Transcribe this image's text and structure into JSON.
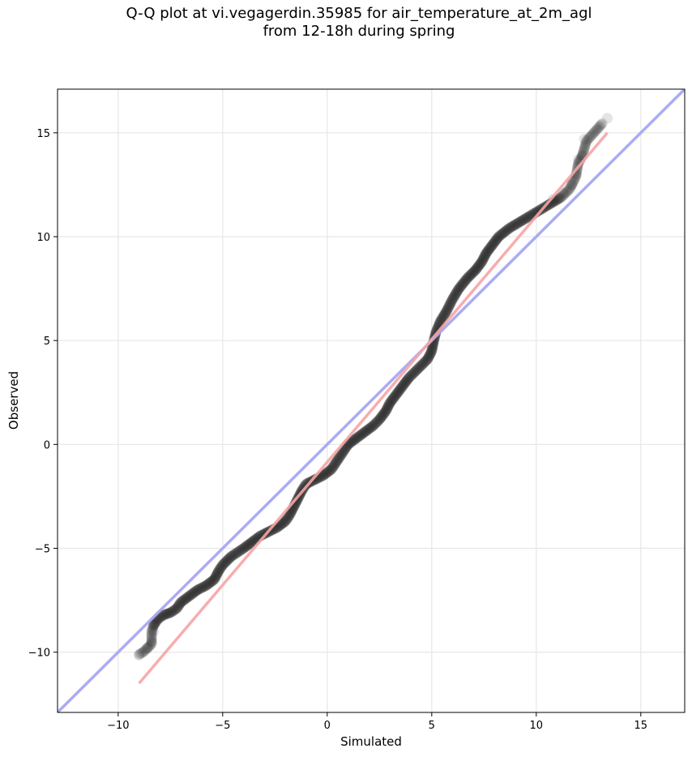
{
  "chart_data": {
    "type": "scatter",
    "title_line1": "Q-Q plot at vi.vegagerdin.35985 for air_temperature_at_2m_agl",
    "title_line2": "from 12-18h during spring",
    "xlabel": "Simulated",
    "ylabel": "Observed",
    "xlim": [
      -12.9,
      17.1
    ],
    "ylim": [
      -12.9,
      17.1
    ],
    "xticks": [
      -10,
      -5,
      0,
      5,
      10,
      15
    ],
    "yticks": [
      -10,
      -5,
      0,
      5,
      10,
      15
    ],
    "xtick_labels": [
      "−10",
      "−5",
      "0",
      "5",
      "10",
      "15"
    ],
    "ytick_labels": [
      "−10",
      "−5",
      "0",
      "5",
      "10",
      "15"
    ],
    "grid": true,
    "quantile_curve": [
      [
        -9.0,
        -10.1
      ],
      [
        -8.8,
        -10.0
      ],
      [
        -8.6,
        -9.8
      ],
      [
        -8.4,
        -9.6
      ],
      [
        -8.4,
        -9.0
      ],
      [
        -8.3,
        -8.7
      ],
      [
        -8.1,
        -8.4
      ],
      [
        -7.8,
        -8.2
      ],
      [
        -7.5,
        -8.1
      ],
      [
        -7.2,
        -7.9
      ],
      [
        -7.0,
        -7.6
      ],
      [
        -6.6,
        -7.3
      ],
      [
        -6.2,
        -7.0
      ],
      [
        -5.8,
        -6.8
      ],
      [
        -5.4,
        -6.5
      ],
      [
        -5.2,
        -6.1
      ],
      [
        -5.0,
        -5.8
      ],
      [
        -4.8,
        -5.6
      ],
      [
        -4.6,
        -5.4
      ],
      [
        -4.3,
        -5.2
      ],
      [
        -4.0,
        -5.0
      ],
      [
        -3.6,
        -4.7
      ],
      [
        -3.2,
        -4.4
      ],
      [
        -2.8,
        -4.2
      ],
      [
        -2.4,
        -4.0
      ],
      [
        -2.0,
        -3.7
      ],
      [
        -1.8,
        -3.4
      ],
      [
        -1.6,
        -3.0
      ],
      [
        -1.4,
        -2.6
      ],
      [
        -1.2,
        -2.2
      ],
      [
        -1.0,
        -1.9
      ],
      [
        -0.6,
        -1.7
      ],
      [
        -0.2,
        -1.5
      ],
      [
        0.2,
        -1.2
      ],
      [
        0.4,
        -0.9
      ],
      [
        0.6,
        -0.6
      ],
      [
        0.8,
        -0.3
      ],
      [
        1.0,
        0.0
      ],
      [
        1.4,
        0.3
      ],
      [
        1.8,
        0.6
      ],
      [
        2.2,
        0.9
      ],
      [
        2.5,
        1.2
      ],
      [
        2.8,
        1.6
      ],
      [
        3.0,
        2.0
      ],
      [
        3.3,
        2.4
      ],
      [
        3.6,
        2.8
      ],
      [
        3.9,
        3.2
      ],
      [
        4.2,
        3.5
      ],
      [
        4.5,
        3.8
      ],
      [
        4.8,
        4.1
      ],
      [
        5.0,
        4.5
      ],
      [
        5.1,
        5.0
      ],
      [
        5.2,
        5.4
      ],
      [
        5.4,
        5.9
      ],
      [
        5.7,
        6.4
      ],
      [
        6.0,
        7.0
      ],
      [
        6.3,
        7.5
      ],
      [
        6.7,
        8.0
      ],
      [
        7.1,
        8.4
      ],
      [
        7.4,
        8.8
      ],
      [
        7.6,
        9.2
      ],
      [
        7.9,
        9.6
      ],
      [
        8.2,
        10.0
      ],
      [
        8.7,
        10.4
      ],
      [
        9.2,
        10.7
      ],
      [
        9.7,
        11.0
      ],
      [
        10.2,
        11.3
      ],
      [
        10.7,
        11.6
      ],
      [
        11.2,
        11.9
      ],
      [
        11.6,
        12.3
      ],
      [
        11.9,
        12.9
      ],
      [
        12.0,
        13.5
      ],
      [
        12.2,
        13.9
      ],
      [
        12.4,
        14.6
      ],
      [
        13.2,
        15.5
      ]
    ],
    "sparse_points": [
      [
        -9.0,
        -10.15
      ],
      [
        -8.6,
        -9.8
      ],
      [
        -8.4,
        -9.5
      ],
      [
        -8.3,
        -9.0
      ],
      [
        -8.3,
        -8.7
      ],
      [
        10.8,
        11.8
      ],
      [
        11.3,
        12.1
      ],
      [
        11.7,
        12.5
      ],
      [
        11.9,
        13.0
      ],
      [
        12.0,
        13.7
      ],
      [
        12.2,
        13.9
      ],
      [
        12.3,
        14.7
      ],
      [
        13.4,
        15.7
      ]
    ],
    "identity_line": {
      "color": "#a7a7f3",
      "label": ""
    },
    "fit_line": {
      "x": [
        -9.0,
        13.4
      ],
      "y": [
        -11.5,
        15.0
      ],
      "color": "#f6a4a4"
    },
    "point_color": "#222222"
  }
}
